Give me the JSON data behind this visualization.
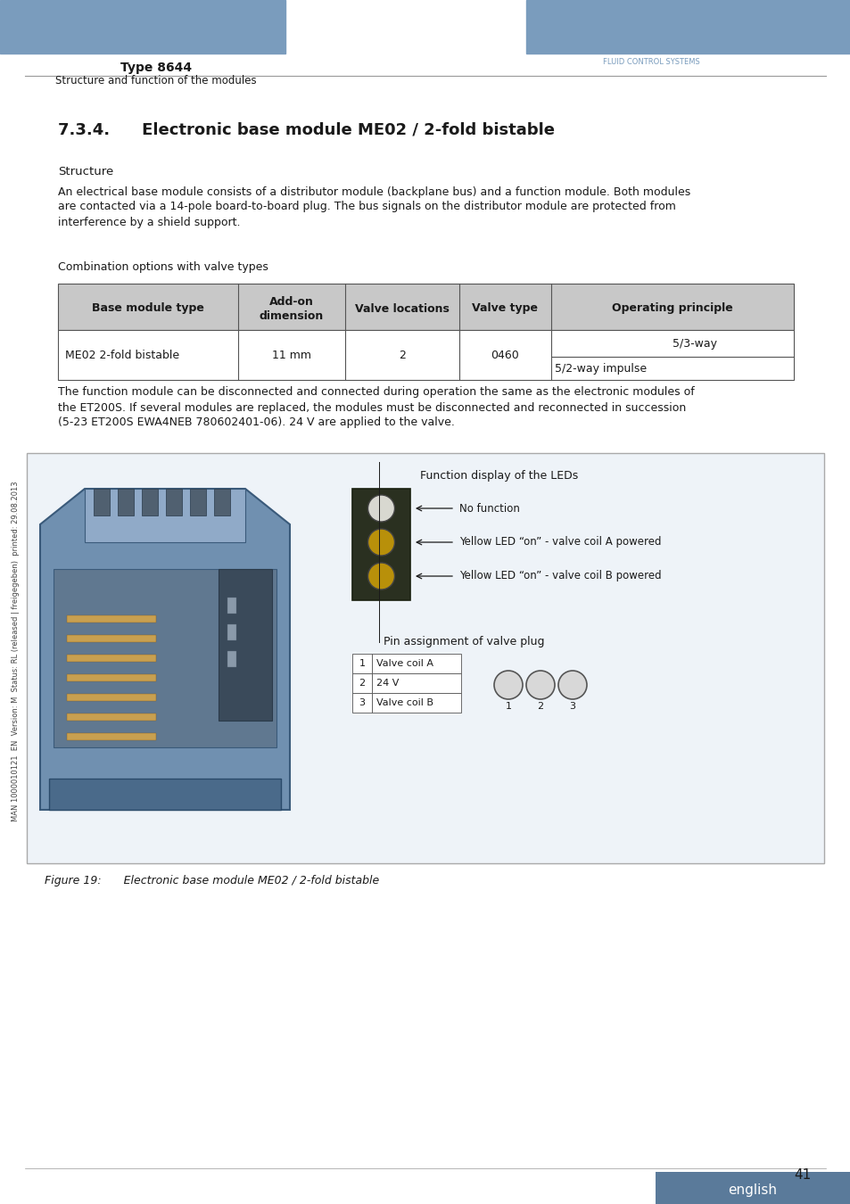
{
  "page_title": "Type 8644",
  "page_subtitle": "Structure and function of the modules",
  "header_bar_color": "#7a9cbd",
  "section_title": "7.3.4.  Electronic base module ME02 / 2-fold bistable",
  "section_label": "Structure",
  "body_text1_lines": [
    "An electrical base module consists of a distributor module (backplane bus) and a function module. Both modules",
    "are contacted via a 14-pole board-to-board plug. The bus signals on the distributor module are protected from",
    "interference by a shield support."
  ],
  "combo_label": "Combination options with valve types",
  "table_headers": [
    "Base module type",
    "Add-on\ndimension",
    "Valve locations",
    "Valve type",
    "Operating principle"
  ],
  "table_row1": [
    "ME02 2-fold bistable",
    "11 mm",
    "2",
    "0460",
    "5/3-way"
  ],
  "table_row2": [
    "",
    "",
    "",
    "",
    "5/2-way impulse"
  ],
  "table_header_bg": "#c8c8c8",
  "table_border_color": "#555555",
  "body_text2_lines": [
    "The function module can be disconnected and connected during operation the same as the electronic modules of",
    "the ET200S. If several modules are replaced, the modules must be disconnected and reconnected in succession",
    "(5-23 ET200S EWA4NEB 780602401-06). 24 V are applied to the valve."
  ],
  "figure_caption": "Figure 19:  Electronic base module ME02 / 2-fold bistable",
  "side_text": "MAN 1000010121  EN  Version: M  Status: RL (released | freigegeben)  printed: 29.08.2013",
  "page_number": "41",
  "footer_label": "english",
  "led_label1": "No function",
  "led_label2": "Yellow LED “on” - valve coil A powered",
  "led_label3": "Yellow LED “on” - valve coil B powered",
  "fig_title": "Function display of the LEDs",
  "pin_label": "Pin assignment of valve plug",
  "pin_rows": [
    [
      "1",
      "Valve coil A"
    ],
    [
      "2",
      "24 V"
    ],
    [
      "3",
      "Valve coil B"
    ]
  ],
  "text_color": "#1a1a1a",
  "light_gray": "#d0d0d0",
  "mid_gray": "#a0a0a0"
}
